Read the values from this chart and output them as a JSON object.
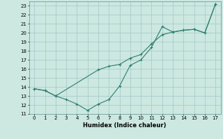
{
  "title": "",
  "xlabel": "Humidex (Indice chaleur)",
  "ylabel": "",
  "background_color": "#cce8e0",
  "grid_color": "#aacccc",
  "line_color": "#2e7d6e",
  "xlim": [
    -0.5,
    17.5
  ],
  "ylim": [
    11,
    23.5
  ],
  "xticks": [
    0,
    1,
    2,
    3,
    4,
    5,
    6,
    7,
    8,
    9,
    10,
    11,
    12,
    13,
    14,
    15,
    16,
    17
  ],
  "yticks": [
    11,
    12,
    13,
    14,
    15,
    16,
    17,
    18,
    19,
    20,
    21,
    22,
    23
  ],
  "line1_x": [
    0,
    1,
    2,
    3,
    4,
    5,
    6,
    7,
    8,
    9,
    10,
    11,
    12,
    13,
    14,
    15,
    16,
    17
  ],
  "line1_y": [
    13.8,
    13.6,
    13.0,
    12.6,
    12.1,
    11.4,
    12.1,
    12.6,
    14.1,
    16.4,
    17.0,
    18.4,
    20.7,
    20.1,
    20.3,
    20.4,
    20.0,
    23.2
  ],
  "line2_x": [
    0,
    1,
    2,
    6,
    7,
    8,
    9,
    10,
    11,
    12,
    13,
    14,
    15,
    16,
    17
  ],
  "line2_y": [
    13.8,
    13.6,
    13.0,
    15.9,
    16.3,
    16.5,
    17.2,
    17.6,
    18.8,
    19.8,
    20.1,
    20.3,
    20.4,
    20.0,
    23.2
  ]
}
